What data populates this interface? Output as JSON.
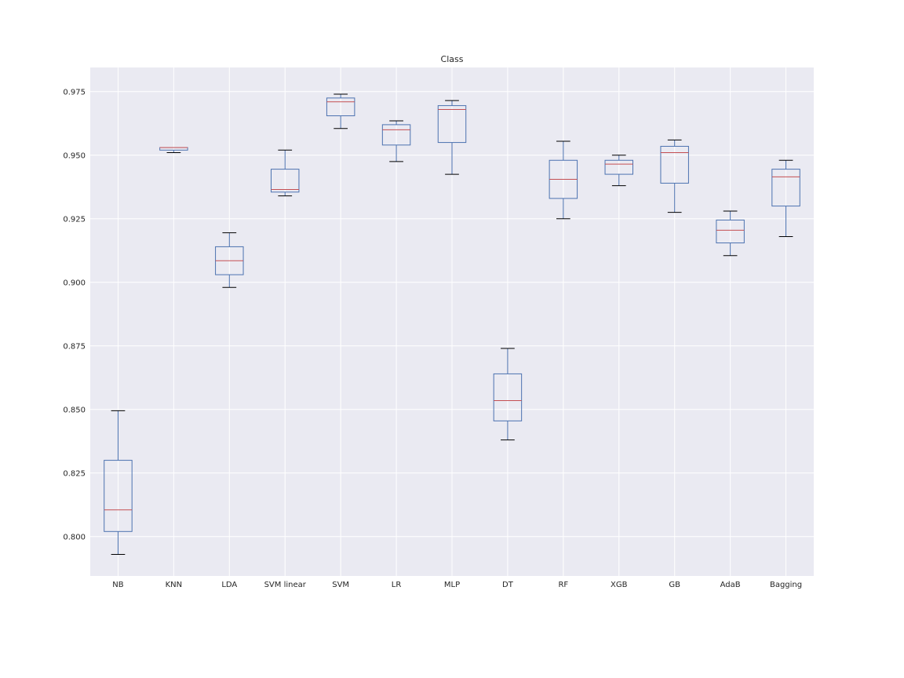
{
  "chart_data": {
    "type": "boxplot",
    "title": "Class",
    "xlabel": "",
    "ylabel": "",
    "ylim": [
      0.7845,
      0.9845
    ],
    "yticks": [
      0.8,
      0.825,
      0.85,
      0.875,
      0.9,
      0.925,
      0.95,
      0.975
    ],
    "ytick_labels": [
      "0.800",
      "0.825",
      "0.850",
      "0.875",
      "0.900",
      "0.925",
      "0.950",
      "0.975"
    ],
    "grid": true,
    "categories": [
      "NB",
      "KNN",
      "LDA",
      "SVM linear",
      "SVM",
      "LR",
      "MLP",
      "DT",
      "RF",
      "XGB",
      "GB",
      "AdaB",
      "Bagging"
    ],
    "boxes": [
      {
        "name": "NB",
        "whislo": 0.793,
        "q1": 0.802,
        "med": 0.8105,
        "q3": 0.83,
        "whishi": 0.8495
      },
      {
        "name": "KNN",
        "whislo": 0.951,
        "q1": 0.952,
        "med": 0.953,
        "q3": 0.953,
        "whishi": 0.953
      },
      {
        "name": "LDA",
        "whislo": 0.898,
        "q1": 0.903,
        "med": 0.9085,
        "q3": 0.914,
        "whishi": 0.9195
      },
      {
        "name": "SVM linear",
        "whislo": 0.934,
        "q1": 0.9355,
        "med": 0.9365,
        "q3": 0.9445,
        "whishi": 0.952
      },
      {
        "name": "SVM",
        "whislo": 0.9605,
        "q1": 0.9655,
        "med": 0.971,
        "q3": 0.9725,
        "whishi": 0.974
      },
      {
        "name": "LR",
        "whislo": 0.9475,
        "q1": 0.954,
        "med": 0.96,
        "q3": 0.962,
        "whishi": 0.9635
      },
      {
        "name": "MLP",
        "whislo": 0.9425,
        "q1": 0.955,
        "med": 0.968,
        "q3": 0.9695,
        "whishi": 0.9715
      },
      {
        "name": "DT",
        "whislo": 0.838,
        "q1": 0.8455,
        "med": 0.8535,
        "q3": 0.864,
        "whishi": 0.874
      },
      {
        "name": "RF",
        "whislo": 0.925,
        "q1": 0.933,
        "med": 0.9405,
        "q3": 0.948,
        "whishi": 0.9555
      },
      {
        "name": "XGB",
        "whislo": 0.938,
        "q1": 0.9425,
        "med": 0.9465,
        "q3": 0.948,
        "whishi": 0.95
      },
      {
        "name": "GB",
        "whislo": 0.9275,
        "q1": 0.939,
        "med": 0.951,
        "q3": 0.9535,
        "whishi": 0.956
      },
      {
        "name": "AdaB",
        "whislo": 0.9105,
        "q1": 0.9155,
        "med": 0.9205,
        "q3": 0.9245,
        "whishi": 0.928
      },
      {
        "name": "Bagging",
        "whislo": 0.918,
        "q1": 0.93,
        "med": 0.9415,
        "q3": 0.9445,
        "whishi": 0.948
      }
    ],
    "colors": {
      "background": "#eaeaf2",
      "grid": "#ffffff",
      "box": "#4c72b0",
      "median": "#c44e52",
      "cap": "#000000",
      "text": "#262626"
    }
  }
}
